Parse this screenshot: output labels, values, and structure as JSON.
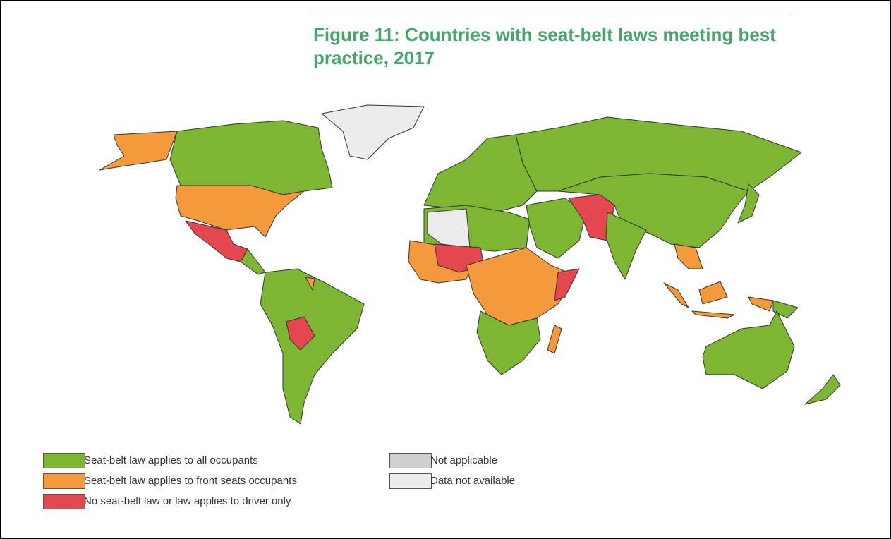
{
  "figure": {
    "title": "Figure 11: Countries with seat-belt laws meeting best practice, 2017"
  },
  "legend": [
    {
      "label": "Seat-belt law applies to all occupants",
      "color": "#7db633"
    },
    {
      "label": "Seat-belt law applies to front seats occupants",
      "color": "#f39a3c"
    },
    {
      "label": "No seat-belt law or law applies to driver only",
      "color": "#e5474f"
    },
    {
      "label": "Not applicable",
      "color": "#cfcfcf"
    },
    {
      "label": "Data not available",
      "color": "#ececec"
    }
  ]
}
